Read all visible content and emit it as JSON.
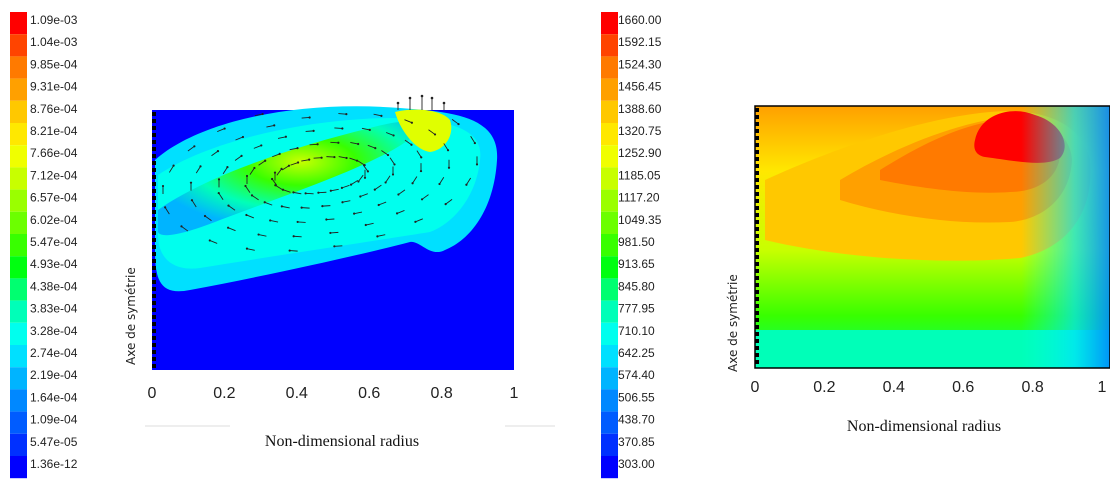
{
  "chart_data": [
    {
      "type": "heatmap",
      "colorbar": {
        "labels": [
          "1.09e-03",
          "1.04e-03",
          "9.85e-04",
          "9.31e-04",
          "8.76e-04",
          "8.21e-04",
          "7.66e-04",
          "7.12e-04",
          "6.57e-04",
          "6.02e-04",
          "5.47e-04",
          "4.93e-04",
          "4.38e-04",
          "3.83e-04",
          "3.28e-04",
          "2.74e-04",
          "2.19e-04",
          "1.64e-04",
          "1.09e-04",
          "5.47e-05",
          "1.36e-12"
        ],
        "colors": [
          "#ff0000",
          "#ff4400",
          "#ff7a00",
          "#ffa000",
          "#ffc800",
          "#ffe800",
          "#f0ff00",
          "#c8ff00",
          "#9aff00",
          "#6cff00",
          "#38ff00",
          "#00ff10",
          "#00ff70",
          "#00ffb8",
          "#00ffee",
          "#00e0ff",
          "#00b4ff",
          "#0088ff",
          "#005cff",
          "#0030ff",
          "#0000ff"
        ]
      },
      "xlabel": "Non-dimensional radius",
      "ylabel": "Axe de symétrie",
      "x_ticks": [
        "0",
        "0.2",
        "0.4",
        "0.6",
        "0.8",
        "1"
      ],
      "xlim": [
        0,
        1
      ],
      "overlay": "velocity vectors"
    },
    {
      "type": "heatmap",
      "colorbar": {
        "labels": [
          "1660.00",
          "1592.15",
          "1524.30",
          "1456.45",
          "1388.60",
          "1320.75",
          "1252.90",
          "1185.05",
          "1117.20",
          "1049.35",
          "981.50",
          "913.65",
          "845.80",
          "777.95",
          "710.10",
          "642.25",
          "574.40",
          "506.55",
          "438.70",
          "370.85",
          "303.00"
        ],
        "colors": [
          "#ff0000",
          "#ff4400",
          "#ff7a00",
          "#ffa000",
          "#ffc800",
          "#ffe800",
          "#f0ff00",
          "#c8ff00",
          "#9aff00",
          "#6cff00",
          "#38ff00",
          "#00ff10",
          "#00ff70",
          "#00ffb8",
          "#00ffee",
          "#00e0ff",
          "#00b4ff",
          "#0088ff",
          "#005cff",
          "#0030ff",
          "#0000ff"
        ]
      },
      "xlabel": "Non-dimensional radius",
      "ylabel": "Axe de symétrie",
      "x_ticks": [
        "0",
        "0.2",
        "0.4",
        "0.6",
        "0.8",
        "1"
      ],
      "xlim": [
        0,
        1
      ]
    }
  ]
}
